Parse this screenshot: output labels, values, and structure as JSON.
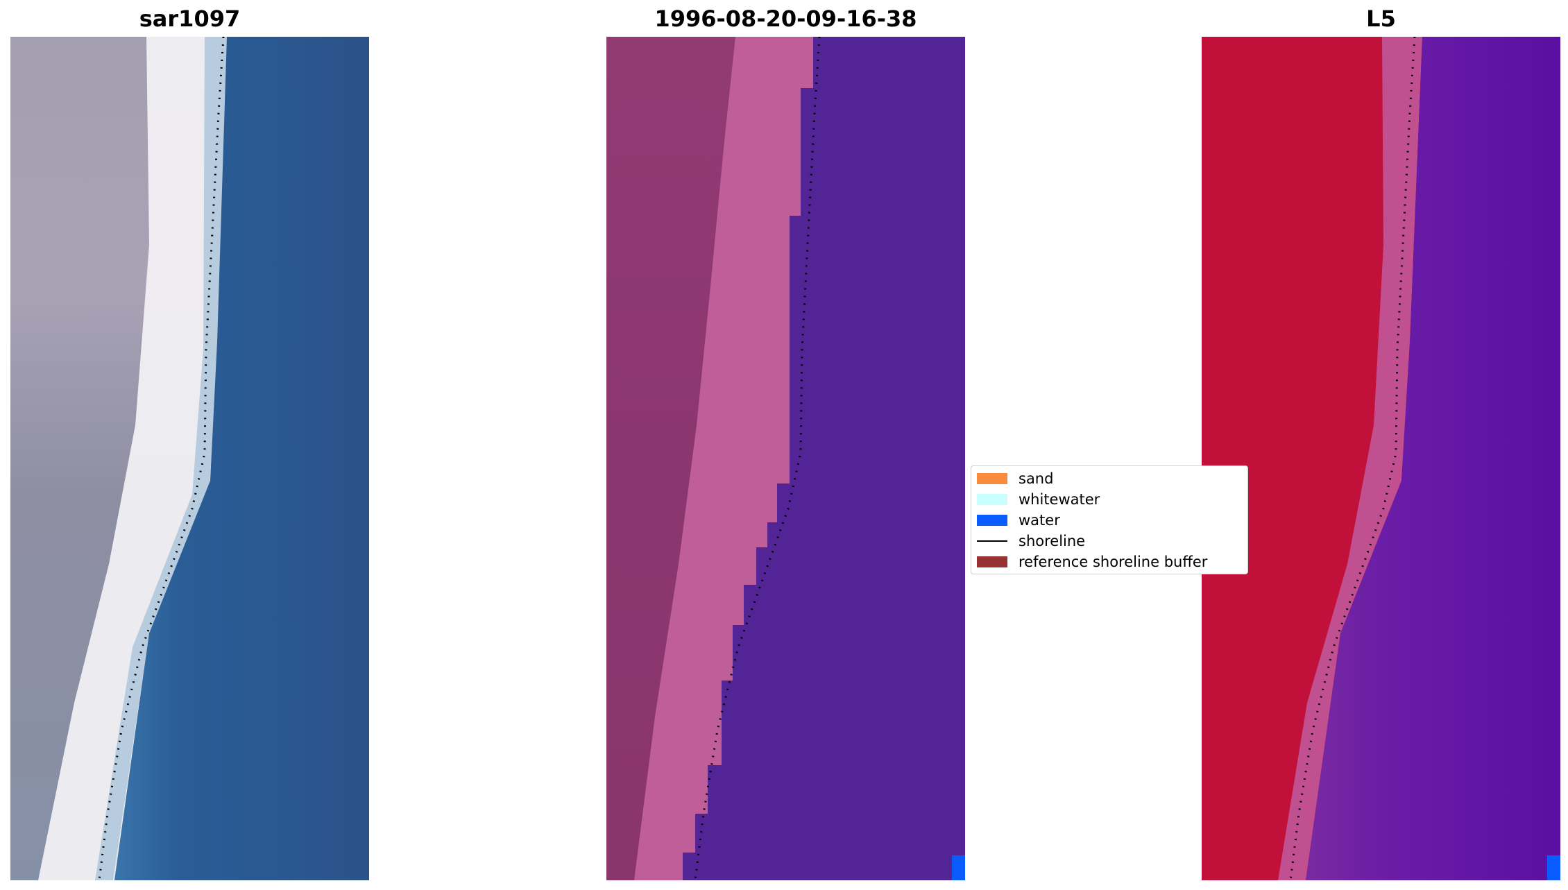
{
  "panels": [
    {
      "title": "sar1097"
    },
    {
      "title": "1996-08-20-09-16-38"
    },
    {
      "title": "L5"
    }
  ],
  "legend": {
    "items": [
      {
        "label": "sand",
        "color": "#f98c3c",
        "kind": "patch"
      },
      {
        "label": "whitewater",
        "color": "#c8ffff",
        "kind": "patch"
      },
      {
        "label": "water",
        "color": "#0a5cff",
        "kind": "patch"
      },
      {
        "label": "shoreline",
        "color": "#000000",
        "kind": "line"
      },
      {
        "label": "reference shoreline buffer",
        "color": "#963232",
        "kind": "patch"
      }
    ]
  },
  "colors": {
    "rgb_land": "#9e98ab",
    "rgb_beach": "#f2f1f4",
    "rgb_water": "#2a5a92",
    "class_land": "#8e3a72",
    "class_beach": "#bf5e98",
    "class_water": "#522495",
    "class_water_corner": "#0a5cff",
    "index_land": "#bf0b39",
    "index_beach": "#c2529d",
    "index_water": "#5c14a0"
  }
}
